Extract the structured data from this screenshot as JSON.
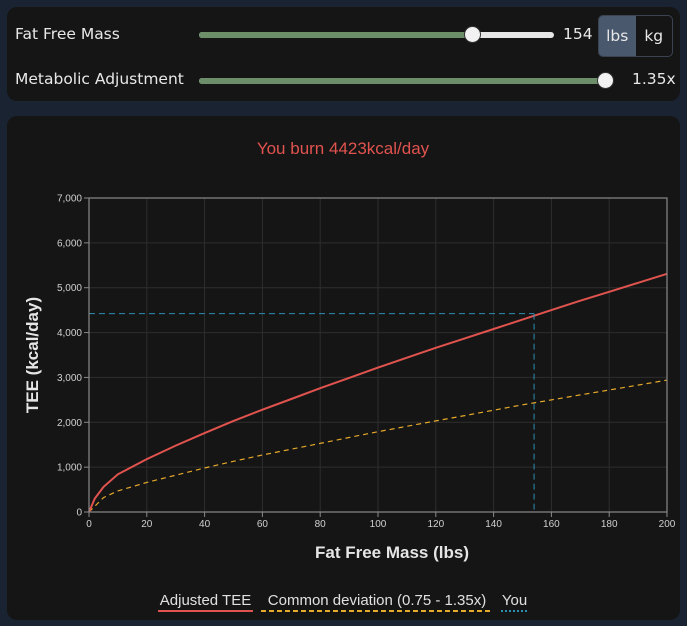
{
  "controls": {
    "ffm": {
      "label": "Fat Free Mass",
      "value": "154",
      "fraction": 0.77
    },
    "units": {
      "lbs": "lbs",
      "kg": "kg",
      "active": "lbs"
    },
    "metabolic": {
      "label": "Metabolic Adjustment",
      "value": "1.35x",
      "fraction": 1.0
    }
  },
  "colors": {
    "adjusted": "#e0534e",
    "common": "#e6a92a",
    "you": "#2b8fb0",
    "slider_fill": "#6c8f6a",
    "title": "#e0534e"
  },
  "chart_data": {
    "type": "line",
    "title": "You burn 4423kcal/day",
    "xlabel": "Fat Free Mass (lbs)",
    "ylabel": "TEE (kcal/day)",
    "xlim": [
      0,
      200
    ],
    "ylim": [
      0,
      7000
    ],
    "x_ticks": [
      "0",
      "20",
      "40",
      "60",
      "80",
      "100",
      "120",
      "140",
      "160",
      "180",
      "200"
    ],
    "y_ticks": [
      "0",
      "1,000",
      "2,000",
      "3,000",
      "4,000",
      "5,000",
      "6,000",
      "7,000"
    ],
    "grid": true,
    "legend_position": "bottom",
    "series": [
      {
        "name": "Adjusted TEE",
        "x": [
          0,
          2,
          5,
          10,
          20,
          30,
          40,
          50,
          60,
          70,
          80,
          90,
          100,
          110,
          120,
          130,
          140,
          150,
          160,
          170,
          180,
          190,
          200
        ],
        "y": [
          0,
          300,
          560,
          840,
          1180,
          1480,
          1760,
          2030,
          2280,
          2520,
          2760,
          2990,
          3220,
          3440,
          3660,
          3870,
          4080,
          4290,
          4500,
          4710,
          4910,
          5110,
          5310
        ]
      },
      {
        "name": "Common deviation (0.75 - 1.35x)",
        "x": [
          0,
          5,
          10,
          20,
          30,
          40,
          50,
          60,
          70,
          80,
          90,
          100,
          110,
          120,
          130,
          140,
          150,
          160,
          170,
          180,
          190,
          200
        ],
        "y": [
          0,
          320,
          470,
          660,
          820,
          980,
          1130,
          1270,
          1400,
          1530,
          1660,
          1790,
          1910,
          2030,
          2150,
          2270,
          2390,
          2500,
          2610,
          2720,
          2830,
          2940
        ]
      },
      {
        "name": "You",
        "x": [
          154
        ],
        "y": [
          4423
        ]
      }
    ]
  }
}
